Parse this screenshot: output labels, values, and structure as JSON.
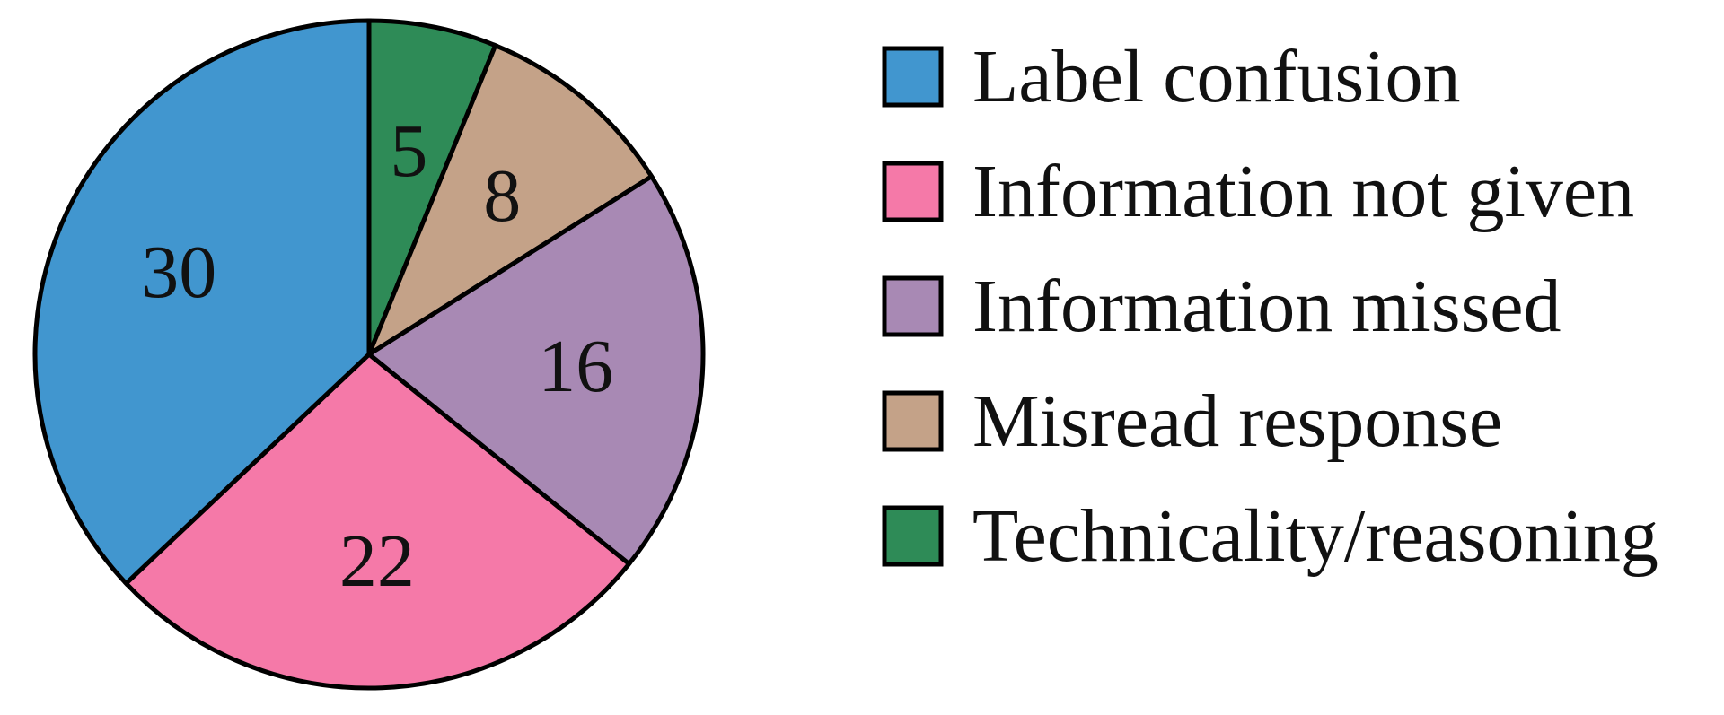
{
  "chart_data": {
    "type": "pie",
    "start": "top",
    "direction": "clockwise",
    "legend_position": "right",
    "categories": [
      "Technicality/reasoning",
      "Misread response",
      "Information missed",
      "Information not given",
      "Label confusion"
    ],
    "values": [
      5,
      8,
      16,
      22,
      30
    ],
    "value_labels": [
      "5",
      "8",
      "16",
      "22",
      "30"
    ],
    "colors": [
      "#2e8b57",
      "#c4a288",
      "#a889b4",
      "#f579a8",
      "#4196cf"
    ],
    "legend": [
      {
        "label": "Label confusion",
        "color": "#4196cf"
      },
      {
        "label": "Information not given",
        "color": "#f579a8"
      },
      {
        "label": "Information missed",
        "color": "#a889b4"
      },
      {
        "label": "Misread response",
        "color": "#c4a288"
      },
      {
        "label": "Technicality/reasoning",
        "color": "#2e8b57"
      }
    ]
  }
}
